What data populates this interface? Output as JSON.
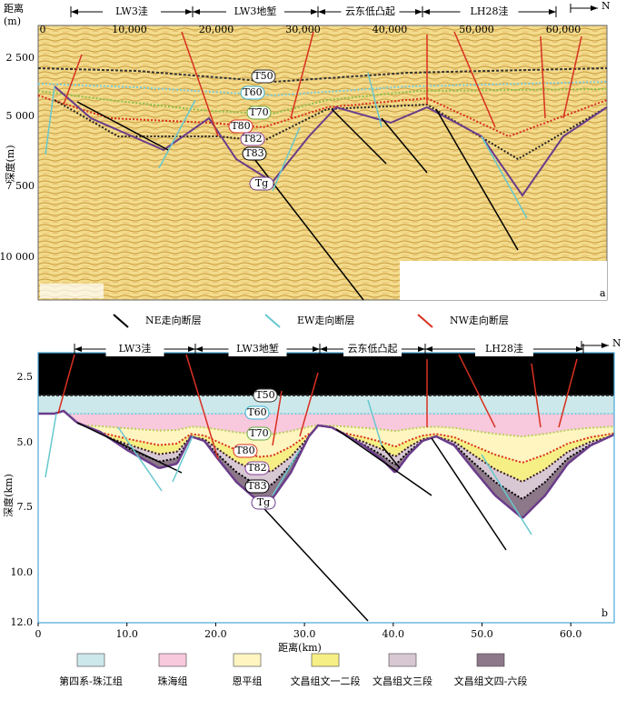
{
  "zones": [
    "LW3洼",
    "LW3地堑",
    "云东低凸起",
    "LH28洼"
  ],
  "north": "N",
  "horizons": [
    "T50",
    "T60",
    "T70",
    "T80",
    "T82",
    "T83",
    "Tg"
  ],
  "panel_a": {
    "x_axis_title": "距离",
    "x_axis_unit": "(m)",
    "x_ticks": [
      "0",
      "10,000",
      "20,000",
      "30,000",
      "40,000",
      "50,000",
      "60,000"
    ],
    "y_axis_title": "深度(m)",
    "y_ticks": [
      "2 500",
      "5 000",
      "7 500",
      "10 000"
    ],
    "label": "a"
  },
  "fault_legend": [
    "NE走向断层",
    "EW走向断层",
    "NW走向断层"
  ],
  "panel_b": {
    "x_axis_title": "距离(km)",
    "x_ticks": [
      "0",
      "10.0",
      "20.0",
      "30.0",
      "40.0",
      "50.0",
      "60.0"
    ],
    "y_axis_title": "深度(km)",
    "y_ticks": [
      "2.5",
      "5.0",
      "7.5",
      "10.0",
      "12.0"
    ],
    "label": "b"
  },
  "strata_legend": [
    "第四系-珠江组",
    "珠海组",
    "恩平组",
    "文昌组文一二段",
    "文昌组文三段",
    "文昌组文四-六段"
  ]
}
